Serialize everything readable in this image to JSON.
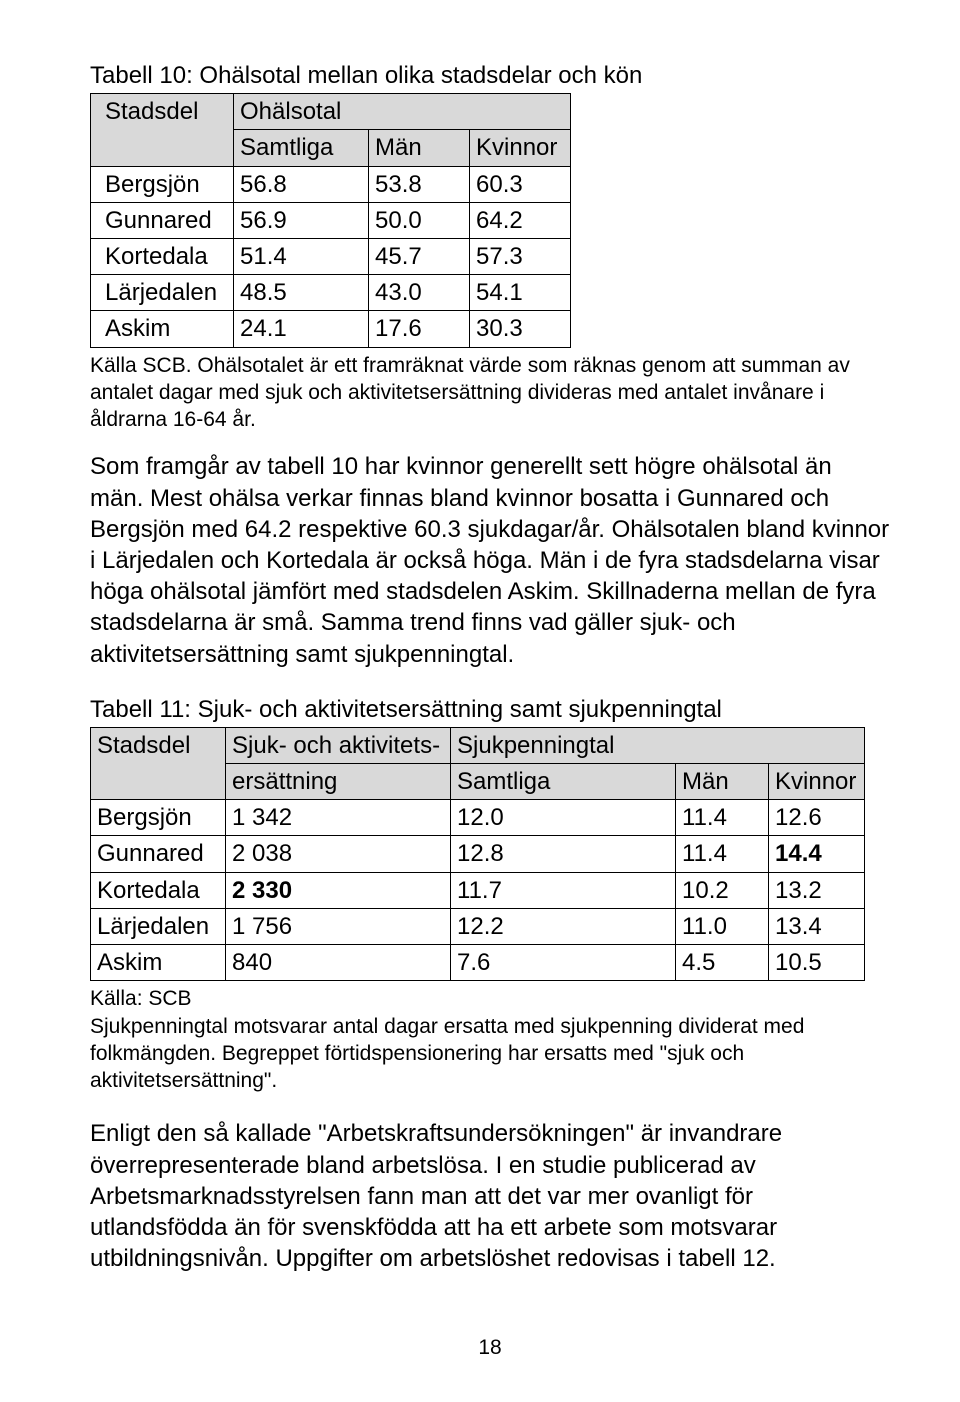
{
  "table10": {
    "caption": "Tabell 10: Ohälsotal mellan olika stadsdelar och kön",
    "h_stadsdel": "Stadsdel",
    "h_ohalsotal": "Ohälsotal",
    "h_samtliga": "Samtliga",
    "h_man": "Män",
    "h_kvinnor": "Kvinnor",
    "rows": [
      {
        "name": "Bergsjön",
        "s": "56.8",
        "m": "53.8",
        "k": "60.3"
      },
      {
        "name": "Gunnared",
        "s": "56.9",
        "m": "50.0",
        "k": "64.2"
      },
      {
        "name": "Kortedala",
        "s": "51.4",
        "m": "45.7",
        "k": "57.3"
      },
      {
        "name": "Lärjedalen",
        "s": "48.5",
        "m": "43.0",
        "k": "54.1"
      },
      {
        "name": "Askim",
        "s": "24.1",
        "m": "17.6",
        "k": "30.3"
      }
    ],
    "source": "Källa SCB. Ohälsotalet är ett framräknat värde som räknas genom att summan av antalet dagar med sjuk och aktivitetsersättning divideras med antalet invånare i åldrarna 16-64 år."
  },
  "para1": "Som framgår av tabell 10 har kvinnor generellt sett högre ohälsotal än män. Mest ohälsa verkar finnas bland kvinnor bosatta i Gunnared och Bergsjön med 64.2  respektive 60.3 sjukdagar/år. Ohälsotalen bland kvinnor i Lärjedalen och Kortedala är också höga. Män i de fyra stadsdelarna visar höga ohälsotal jämfört med stadsdelen Askim. Skillnaderna mellan de fyra stadsdelarna är små.  Samma trend finns vad gäller sjuk- och aktivitetsersättning samt sjukpenningtal.",
  "table11": {
    "caption": "Tabell 11: Sjuk- och aktivitetsersättning samt sjukpenningtal",
    "h_stadsdel": "Stadsdel",
    "h_sjuk_line1": "Sjuk- och aktivitets-",
    "h_sjuk_line2": "ersättning",
    "h_sjukpenningtal": "Sjukpenningtal",
    "h_samtliga": "Samtliga",
    "h_man": "Män",
    "h_kvinnor": "Kvinnor",
    "rows": [
      {
        "name": "Bergsjön",
        "e": "1 342",
        "s": "12.0",
        "m": "11.4",
        "k": "12.6",
        "bold_e": false,
        "bold_k": false
      },
      {
        "name": "Gunnared",
        "e": "2 038",
        "s": "12.8",
        "m": "11.4",
        "k": "14.4",
        "bold_e": false,
        "bold_k": true
      },
      {
        "name": "Kortedala",
        "e": "2 330",
        "s": "11.7",
        "m": "10.2",
        "k": "13.2",
        "bold_e": true,
        "bold_k": false
      },
      {
        "name": "Lärjedalen",
        "e": "1 756",
        "s": "12.2",
        "m": "11.0",
        "k": "13.4",
        "bold_e": false,
        "bold_k": false
      },
      {
        "name": "Askim",
        "e": "840",
        "s": "7.6",
        "m": "4.5",
        "k": "10.5",
        "bold_e": false,
        "bold_k": false
      }
    ],
    "source1": "Källa: SCB",
    "source2": "Sjukpenningtal motsvarar antal dagar ersatta med sjukpenning dividerat med folkmängden. Begreppet förtidspensionering har ersatts med \"sjuk och aktivitetsersättning\"."
  },
  "para2": "Enligt den så kallade \"Arbetskraftsundersökningen\" är invandrare överrepresenterade bland arbetslösa. I en studie publicerad av Arbetsmarknadsstyrelsen fann man att det var mer ovanligt för utlandsfödda än för svenskfödda att ha ett arbete som motsvarar utbildningsnivån. Uppgifter om arbetslöshet redovisas i tabell 12.",
  "page_number": "18"
}
